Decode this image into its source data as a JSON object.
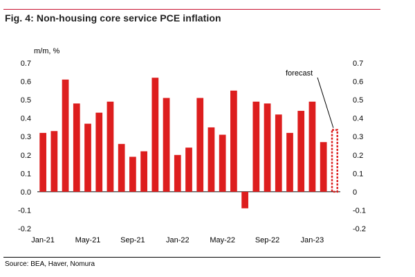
{
  "figure": {
    "title": "Fig. 4: Non-housing core service PCE inflation",
    "source": "Source: BEA, Haver, Nomura"
  },
  "colors": {
    "bar": "#dd1e1e",
    "rule": "#c8102e",
    "axis": "#000000"
  },
  "chart_data": {
    "type": "bar",
    "title": "Non-housing core service PCE inflation",
    "ylabel": "m/m, %",
    "xlabel": "",
    "ylim": [
      -0.2,
      0.7
    ],
    "yticks": [
      -0.2,
      -0.1,
      0.0,
      0.1,
      0.2,
      0.3,
      0.4,
      0.5,
      0.6,
      0.7
    ],
    "ytick_labels": [
      "-0.2",
      "-0.1",
      "0.0",
      "0.1",
      "0.2",
      "0.3",
      "0.4",
      "0.5",
      "0.6",
      "0.7"
    ],
    "right_ytick_labels": [
      "-0.2",
      "-0.1",
      "0",
      "0.1",
      "0.2",
      "0.3",
      "0.4",
      "0.5",
      "0.6",
      "0.7"
    ],
    "categories": [
      "Jan-21",
      "Feb-21",
      "Mar-21",
      "Apr-21",
      "May-21",
      "Jun-21",
      "Jul-21",
      "Aug-21",
      "Sep-21",
      "Oct-21",
      "Nov-21",
      "Dec-21",
      "Jan-22",
      "Feb-22",
      "Mar-22",
      "Apr-22",
      "May-22",
      "Jun-22",
      "Jul-22",
      "Aug-22",
      "Sep-22",
      "Oct-22",
      "Nov-22",
      "Dec-22",
      "Jan-23",
      "Feb-23",
      "Mar-23"
    ],
    "x_tick_labels": [
      {
        "index": 0,
        "label": "Jan-21"
      },
      {
        "index": 4,
        "label": "May-21"
      },
      {
        "index": 8,
        "label": "Sep-21"
      },
      {
        "index": 12,
        "label": "Jan-22"
      },
      {
        "index": 16,
        "label": "May-22"
      },
      {
        "index": 20,
        "label": "Sep-22"
      },
      {
        "index": 24,
        "label": "Jan-23"
      }
    ],
    "series": [
      {
        "name": "Non-housing core service PCE, m/m %",
        "values": [
          0.32,
          0.33,
          0.61,
          0.48,
          0.37,
          0.43,
          0.49,
          0.26,
          0.19,
          0.22,
          0.62,
          0.51,
          0.2,
          0.24,
          0.51,
          0.35,
          0.31,
          0.55,
          -0.09,
          0.49,
          0.48,
          0.42,
          0.32,
          0.44,
          0.49,
          0.27,
          0.34
        ],
        "forecast_index": 26
      }
    ],
    "annotations": [
      {
        "text": "forecast",
        "target_index": 26
      }
    ],
    "grid": false,
    "legend": "none"
  }
}
